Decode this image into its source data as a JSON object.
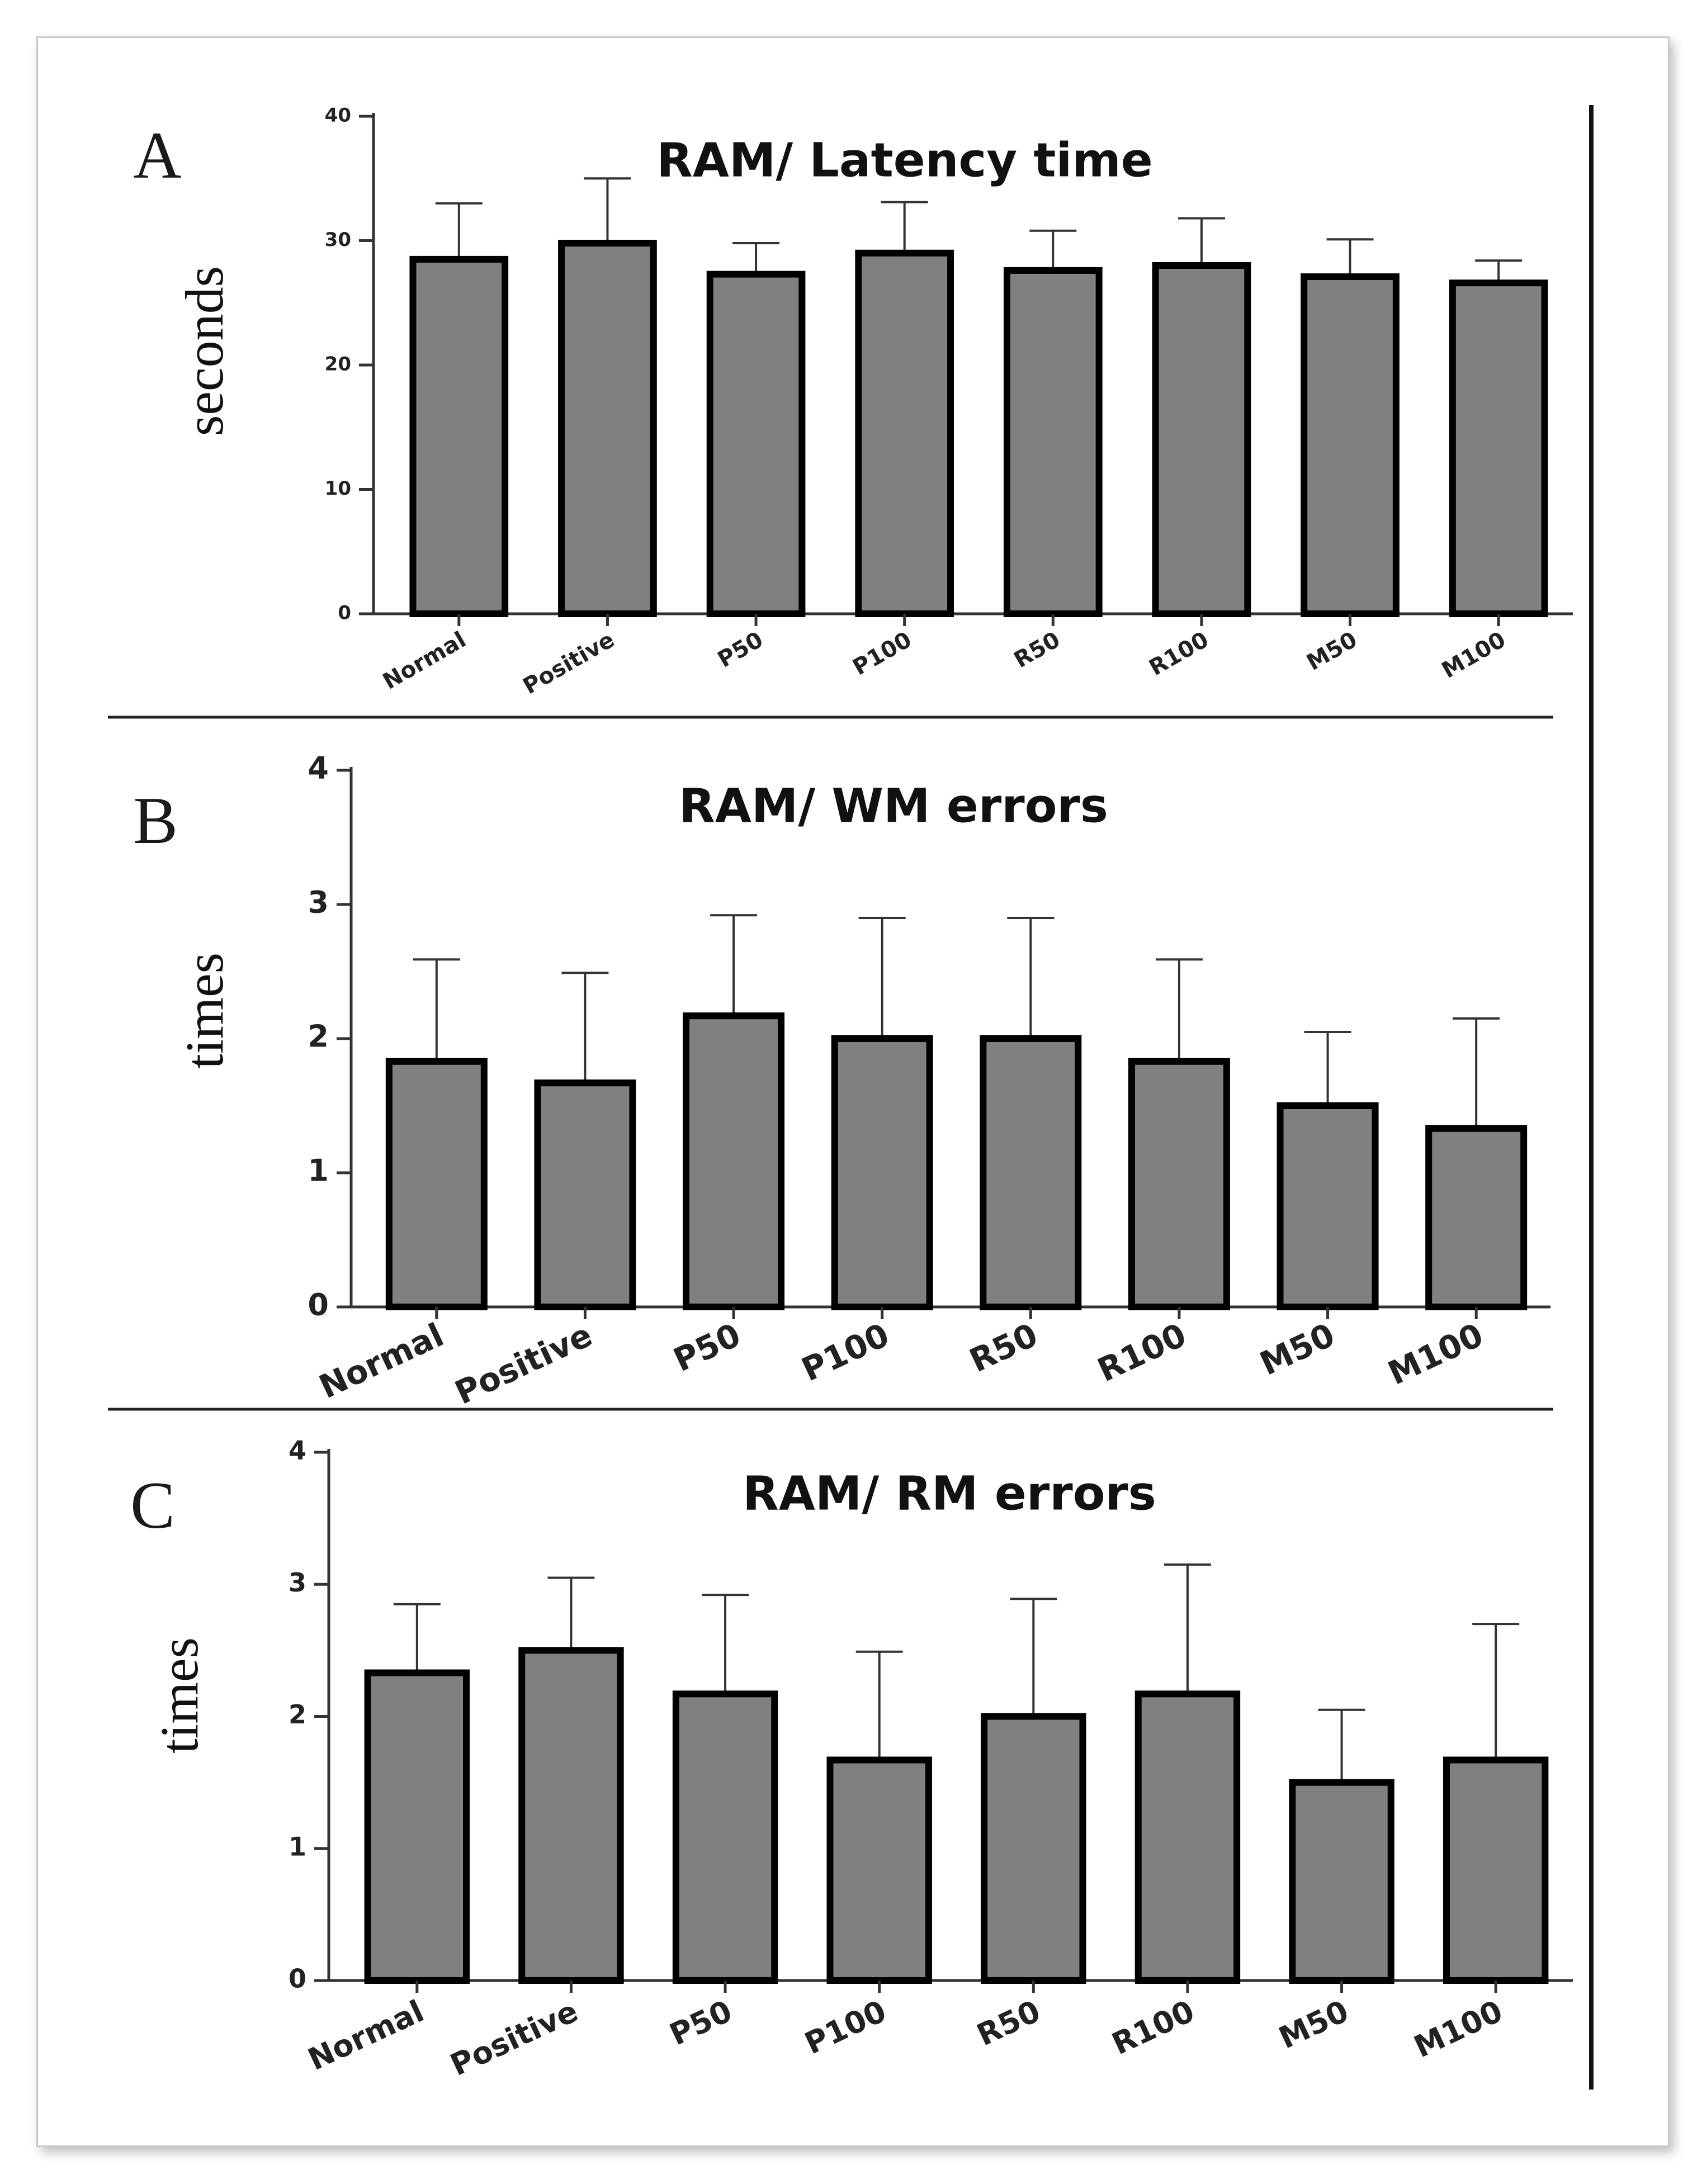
{
  "chart_data": [
    {
      "type": "bar",
      "panel": "A",
      "title": "RAM/ Latency time",
      "xlabel": "",
      "ylabel": "seconds",
      "ylim": [
        0,
        40
      ],
      "yticks": [
        0,
        10,
        20,
        30,
        40
      ],
      "categories": [
        "Normal",
        "Positive",
        "P50",
        "P100",
        "R50",
        "R100",
        "M50",
        "M100"
      ],
      "values": [
        28.5,
        29.8,
        27.3,
        29.0,
        27.6,
        28.0,
        27.1,
        26.6
      ],
      "errors": [
        4.5,
        5.2,
        2.5,
        4.1,
        3.2,
        3.8,
        3.0,
        1.8
      ],
      "bar_color": "#808080"
    },
    {
      "type": "bar",
      "panel": "B",
      "title": "RAM/ WM errors",
      "xlabel": "",
      "ylabel": "times",
      "ylim": [
        0,
        4
      ],
      "yticks": [
        0,
        1,
        2,
        3,
        4
      ],
      "categories": [
        "Normal",
        "Positive",
        "P50",
        "P100",
        "R50",
        "R100",
        "M50",
        "M100"
      ],
      "values": [
        1.83,
        1.67,
        2.17,
        2.0,
        2.0,
        1.83,
        1.5,
        1.33
      ],
      "errors": [
        0.76,
        0.82,
        0.75,
        0.9,
        0.9,
        0.76,
        0.55,
        0.82
      ],
      "bar_color": "#808080"
    },
    {
      "type": "bar",
      "panel": "C",
      "title": "RAM/ RM errors",
      "xlabel": "",
      "ylabel": "times",
      "ylim": [
        0,
        4
      ],
      "yticks": [
        0,
        1,
        2,
        3,
        4
      ],
      "categories": [
        "Normal",
        "Positive",
        "P50",
        "P100",
        "R50",
        "R100",
        "M50",
        "M100"
      ],
      "values": [
        2.33,
        2.5,
        2.17,
        1.67,
        2.0,
        2.17,
        1.5,
        1.67
      ],
      "errors": [
        0.52,
        0.55,
        0.75,
        0.82,
        0.89,
        0.98,
        0.55,
        1.03
      ],
      "bar_color": "#808080"
    }
  ]
}
